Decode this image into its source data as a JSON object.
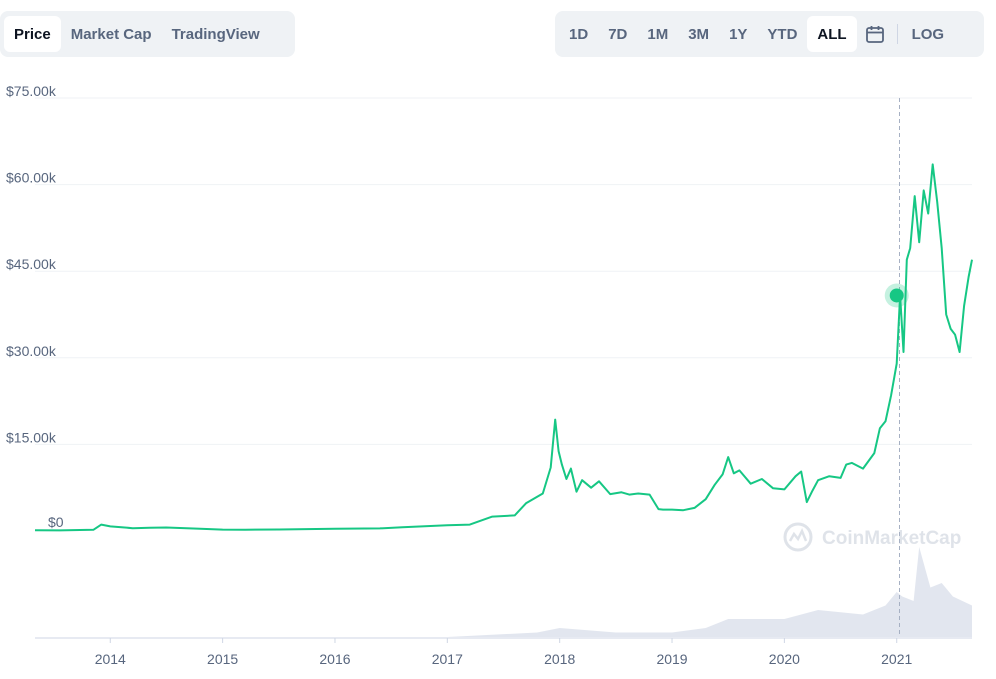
{
  "tabs": [
    "Price",
    "Market Cap",
    "TradingView"
  ],
  "active_tab": "Price",
  "ranges": [
    "1D",
    "7D",
    "1M",
    "3M",
    "1Y",
    "YTD",
    "ALL"
  ],
  "active_range": "ALL",
  "log_label": "LOG",
  "watermark": "CoinMarketCap",
  "colors": {
    "line": "#16c784",
    "grid": "#eff2f5",
    "volume": "#cfd6e4",
    "text": "#58667e"
  },
  "chart_data": {
    "type": "line",
    "y_ticks": [
      "$75.00k",
      "$60.00k",
      "$45.00k",
      "$30.00k",
      "$15.00k",
      "$0"
    ],
    "y_tick_values": [
      75000,
      60000,
      45000,
      30000,
      15000,
      0
    ],
    "x_ticks": [
      "2014",
      "2015",
      "2016",
      "2017",
      "2018",
      "2019",
      "2020",
      "2021"
    ],
    "ylim": [
      0,
      75000
    ],
    "xlim": [
      2013.33,
      2021.67
    ],
    "grid": true,
    "marker": {
      "x": 2021.0,
      "y": 40797
    },
    "series": [
      {
        "x": [
          2013.33,
          2013.55,
          2013.85,
          2013.92,
          2014.0,
          2014.1,
          2014.2,
          2014.35,
          2014.5,
          2014.8,
          2015.0,
          2015.2,
          2015.5,
          2016.0,
          2016.4,
          2016.6,
          2017.0,
          2017.2,
          2017.4,
          2017.6,
          2017.7,
          2017.85,
          2017.92,
          2017.96,
          2017.99,
          2018.02,
          2018.06,
          2018.1,
          2018.15,
          2018.2,
          2018.28,
          2018.35,
          2018.45,
          2018.55,
          2018.62,
          2018.7,
          2018.8,
          2018.88,
          2018.92,
          2019.0,
          2019.1,
          2019.2,
          2019.3,
          2019.38,
          2019.45,
          2019.5,
          2019.55,
          2019.6,
          2019.7,
          2019.8,
          2019.9,
          2020.0,
          2020.1,
          2020.15,
          2020.2,
          2020.25,
          2020.3,
          2020.4,
          2020.5,
          2020.55,
          2020.6,
          2020.7,
          2020.8,
          2020.85,
          2020.9,
          2020.95,
          2021.0,
          2021.03,
          2021.06,
          2021.09,
          2021.12,
          2021.16,
          2021.2,
          2021.24,
          2021.28,
          2021.32,
          2021.36,
          2021.4,
          2021.44,
          2021.48,
          2021.52,
          2021.56,
          2021.6,
          2021.64,
          2021.67
        ],
        "y": [
          120,
          110,
          200,
          1100,
          800,
          650,
          480,
          550,
          600,
          380,
          250,
          230,
          260,
          400,
          450,
          650,
          1000,
          1100,
          2500,
          2700,
          4800,
          6500,
          11000,
          19300,
          13800,
          11500,
          9000,
          10800,
          6800,
          8800,
          7500,
          8600,
          6400,
          6700,
          6300,
          6500,
          6300,
          3800,
          3700,
          3700,
          3600,
          4000,
          5500,
          8000,
          9800,
          12800,
          10000,
          10500,
          8200,
          9000,
          7400,
          7200,
          9500,
          10300,
          5000,
          7000,
          8800,
          9500,
          9200,
          11500,
          11800,
          10800,
          13500,
          17800,
          19000,
          23500,
          29000,
          40800,
          31000,
          47000,
          49000,
          58000,
          50000,
          59000,
          55000,
          63500,
          57000,
          49000,
          37500,
          35000,
          34000,
          31000,
          39000,
          44000,
          47000
        ]
      }
    ],
    "volume": {
      "x": [
        2013.33,
        2014.0,
        2015.0,
        2016.0,
        2017.0,
        2017.8,
        2018.0,
        2018.5,
        2019.0,
        2019.3,
        2019.5,
        2020.0,
        2020.3,
        2020.7,
        2020.9,
        2021.0,
        2021.05,
        2021.15,
        2021.2,
        2021.3,
        2021.4,
        2021.5,
        2021.67
      ],
      "values": [
        0,
        0,
        0,
        0,
        0,
        0.05,
        0.1,
        0.05,
        0.05,
        0.1,
        0.2,
        0.2,
        0.3,
        0.25,
        0.35,
        0.5,
        0.45,
        0.4,
        1.0,
        0.55,
        0.6,
        0.45,
        0.35
      ]
    }
  }
}
